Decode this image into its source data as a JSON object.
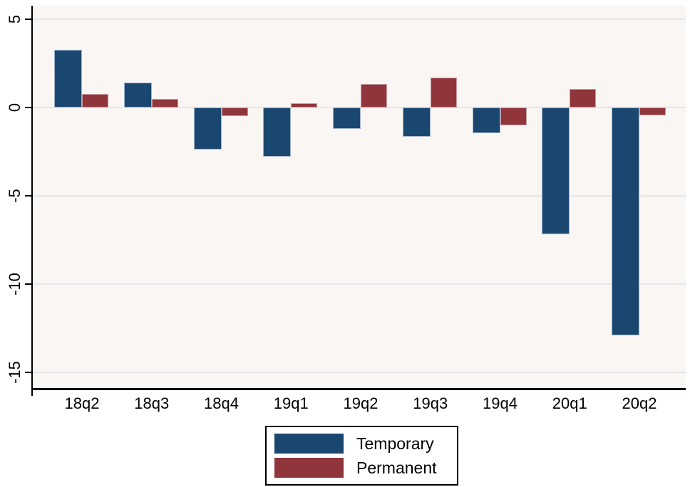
{
  "chart_data": {
    "type": "bar",
    "title": "",
    "xlabel": "",
    "ylabel": "",
    "categories": [
      "18q2",
      "18q3",
      "18q4",
      "19q1",
      "19q2",
      "19q3",
      "19q4",
      "20q1",
      "20q2"
    ],
    "series": [
      {
        "name": "Temporary",
        "color": "#1a476f",
        "values": [
          3.25,
          1.4,
          -2.4,
          -2.8,
          -1.2,
          -1.65,
          -1.45,
          -7.2,
          -12.9
        ]
      },
      {
        "name": "Permanent",
        "color": "#90353b",
        "values": [
          0.75,
          0.5,
          -0.5,
          0.25,
          1.35,
          1.7,
          -1.0,
          1.05,
          -0.45
        ]
      }
    ],
    "yticks": [
      5,
      0,
      -5,
      -10,
      -15
    ],
    "ylim": [
      -16.1,
      5.8
    ],
    "grid": true,
    "legend_position": "bottom-center"
  },
  "figure": {
    "colors": {
      "temporary_bar": "#1a476f",
      "permanent_bar": "#90353b",
      "plot_background": "#f9f6f4",
      "gridline": "#e8e5e8",
      "axis": "#000000"
    }
  }
}
